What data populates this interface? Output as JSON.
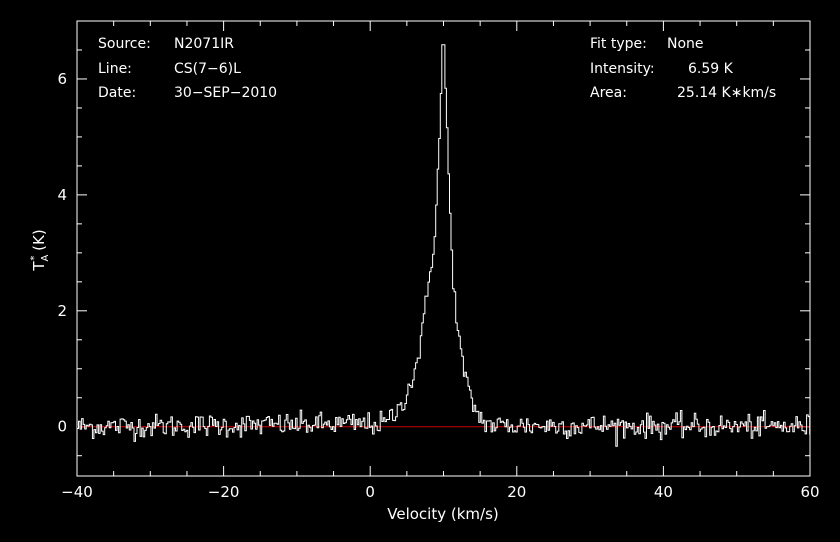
{
  "colors": {
    "background": "#000000",
    "spectrum": "#ffffff",
    "baseline": "#cc0000",
    "frame": "#ffffff"
  },
  "info_left": [
    {
      "key": "Source:",
      "value": "N2071IR"
    },
    {
      "key": "Line:",
      "value": "CS(7−6)L"
    },
    {
      "key": "Date:",
      "value": "30−SEP−2010"
    }
  ],
  "info_right": [
    {
      "key": "Fit type:",
      "value": "None"
    },
    {
      "key": "Intensity:",
      "value": "6.59 K"
    },
    {
      "key": "Area:",
      "value": "25.14 K∗km/s"
    }
  ],
  "chart_data": {
    "type": "line",
    "xlabel": "Velocity (km/s)",
    "ylabel": "T",
    "ylabel_sub": "A",
    "ylabel_sup": "*",
    "ylabel_unit": "(K)",
    "xlim": [
      -40,
      60
    ],
    "ylim": [
      -0.85,
      7.0
    ],
    "xticks": [
      -40,
      -20,
      0,
      20,
      40,
      60
    ],
    "xtick_labels": [
      "−40",
      "−20",
      "0",
      "20",
      "40",
      "60"
    ],
    "yticks": [
      0,
      2,
      4,
      6
    ],
    "ytick_labels": [
      "0",
      "2",
      "4",
      "6"
    ],
    "baseline": 0,
    "grid": false,
    "series": [
      {
        "profile_points": [
          [
            -40,
            0
          ],
          [
            2,
            0.05
          ],
          [
            4,
            0.3
          ],
          [
            6,
            0.9
          ],
          [
            7,
            1.5
          ],
          [
            8,
            2.5
          ],
          [
            8.8,
            3.3
          ],
          [
            9.3,
            4.5
          ],
          [
            9.7,
            5.8
          ],
          [
            9.9,
            6.59
          ],
          [
            10.2,
            6.2
          ],
          [
            10.6,
            4.8
          ],
          [
            11,
            3.3
          ],
          [
            11.5,
            2.3
          ],
          [
            12,
            1.6
          ],
          [
            13,
            0.8
          ],
          [
            14,
            0.4
          ],
          [
            15,
            0.15
          ],
          [
            16.5,
            0.02
          ],
          [
            60,
            0
          ]
        ],
        "channel_width": 0.21,
        "noise_rms": 0.1
      }
    ]
  }
}
